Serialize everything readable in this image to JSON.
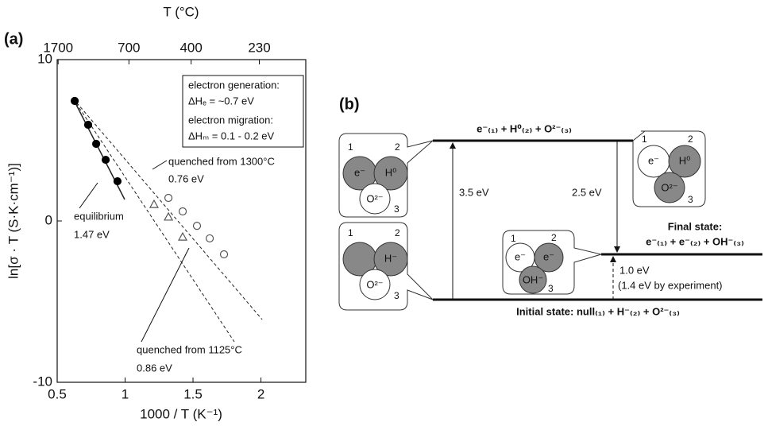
{
  "chart_data": {
    "type": "scatter",
    "panel_label": "(a)",
    "xlabel": "1000 / T (K⁻¹)",
    "ylabel": "ln[σ · T (S·K·cm⁻¹)]",
    "x2label": "T (°C)",
    "xlim": [
      0.5,
      2.33
    ],
    "ylim": [
      -10,
      10
    ],
    "xticks": [
      0.5,
      1,
      1.5,
      2
    ],
    "yticks": [
      -10,
      0,
      10
    ],
    "x2ticks": [
      {
        "value": 0.507,
        "label": "1700"
      },
      {
        "value": 1.028,
        "label": "700"
      },
      {
        "value": 1.486,
        "label": "400"
      },
      {
        "value": 1.988,
        "label": "230"
      }
    ],
    "series": [
      {
        "marker": "filled-circle",
        "color": "#000000",
        "x": [
          0.629,
          0.728,
          0.787,
          0.857,
          0.944
        ],
        "values": [
          7.44,
          5.96,
          4.78,
          3.79,
          2.46
        ]
      },
      {
        "marker": "open-circle",
        "color": "#555555",
        "x": [
          1.319,
          1.424,
          1.529,
          1.623,
          1.728
        ],
        "values": [
          1.43,
          0.59,
          -0.3,
          -1.08,
          -2.07
        ]
      },
      {
        "marker": "open-triangle",
        "color": "#555555",
        "x": [
          1.213,
          1.319,
          1.424
        ],
        "values": [
          1.03,
          0.25,
          -0.99
        ]
      }
    ],
    "fit_lines": [
      {
        "style": "solid",
        "x": [
          0.617,
          0.997
        ],
        "values": [
          7.59,
          1.33
        ]
      },
      {
        "style": "dashed",
        "x": [
          0.617,
          2.009
        ],
        "values": [
          7.59,
          -6.11
        ]
      },
      {
        "style": "dashed",
        "x": [
          0.617,
          1.804
        ],
        "values": [
          7.59,
          -7.49
        ]
      }
    ],
    "annotations": [
      "equilibrium",
      "1.47 eV",
      "quenched from 1300°C",
      "0.76 eV",
      "quenched from 1125°C",
      "0.86 eV"
    ],
    "info_box": [
      "electron generation:",
      "ΔHₑ = ~0.7 eV",
      "electron migration:",
      "ΔHₘ = 0.1 - 0.2 eV"
    ]
  },
  "diagram": {
    "panel_label": "(b)",
    "upper_level": "e⁻₍₁₎ + H⁰₍₂₎ + O²⁻₍₃₎",
    "final_title": "Final state:",
    "final_level": "e⁻₍₁₎ + e⁻₍₂₎ + OH⁻₍₃₎",
    "initial_level": "Initial state: null₍₁₎ + H⁻₍₂₎ + O²⁻₍₃₎",
    "arrow_up": "3.5 eV",
    "arrow_down": "2.5 eV",
    "arrow_small": "1.0 eV",
    "arrow_small_note": "(1.4 eV by experiment)",
    "balloons": [
      {
        "numbers": [
          "1",
          "2",
          "3"
        ],
        "labels": [
          "e⁻",
          "H⁰",
          "O²⁻"
        ]
      },
      {
        "numbers": [
          "1",
          "2",
          "3"
        ],
        "labels": [
          "H⁻",
          "O²⁻"
        ]
      },
      {
        "numbers": [
          "1",
          "2",
          "3"
        ],
        "labels": [
          "e⁻",
          "e⁻",
          "OH⁻"
        ]
      },
      {
        "numbers": [
          "1",
          "2",
          "3"
        ],
        "labels": [
          "e⁻",
          "H⁰",
          "O²⁻"
        ]
      }
    ]
  }
}
